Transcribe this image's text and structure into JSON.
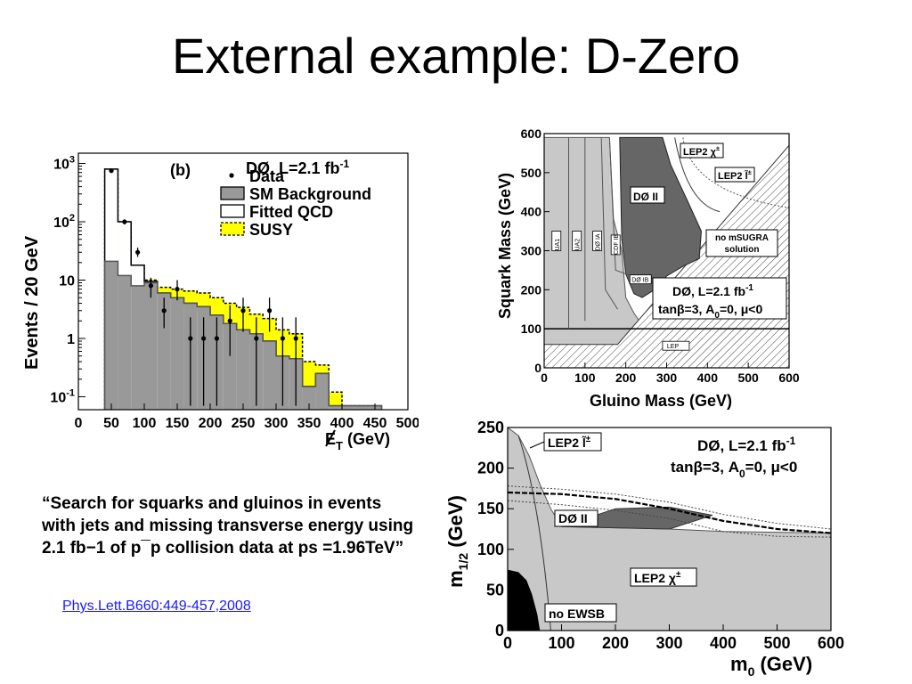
{
  "slide": {
    "title": "External example: D-Zero",
    "quote": "“Search for squarks and gluinos in events with jets and missing transverse energy using 2.1 fb−1 of p¯p collision data at ps =1.96TeV”",
    "citation": "Phys.Lett.B660:449-457,2008"
  },
  "chart_data": [
    {
      "type": "bar",
      "panel_label": "(b)",
      "experiment_label": "DØ, L=2.1 fb",
      "experiment_label_sup": "-1",
      "ylabel": "Events / 20 GeV",
      "xlabel_main": "E",
      "xlabel_sub": "T",
      "xlabel_unit": " (GeV)",
      "ylog": true,
      "ylim": [
        0.06,
        1500
      ],
      "xlim": [
        0,
        500
      ],
      "xticks": [
        0,
        50,
        100,
        150,
        200,
        250,
        300,
        350,
        400,
        450,
        500
      ],
      "yticks": [
        {
          "value": 1000,
          "base": "10",
          "exp": "3"
        },
        {
          "value": 100,
          "base": "10",
          "exp": "2"
        },
        {
          "value": 10,
          "base": "10",
          "exp": ""
        },
        {
          "value": 1,
          "base": "1",
          "exp": ""
        },
        {
          "value": 0.1,
          "base": "10",
          "exp": "-1"
        }
      ],
      "legend": [
        {
          "label": "Data",
          "kind": "marker"
        },
        {
          "label": "SM Background",
          "kind": "fill",
          "color": "#999999"
        },
        {
          "label": "Fitted QCD",
          "kind": "fill",
          "color": "#ffffff"
        },
        {
          "label": "SUSY",
          "kind": "fill",
          "color": "#ffff00"
        }
      ],
      "bin_edges": [
        40,
        60,
        80,
        100,
        120,
        140,
        160,
        180,
        200,
        220,
        240,
        260,
        280,
        300,
        320,
        340,
        360,
        380,
        400,
        420,
        440,
        460
      ],
      "sm_background": [
        21,
        12,
        8,
        9,
        6,
        5,
        4,
        3.5,
        2.5,
        1.8,
        1.4,
        1.2,
        0.9,
        0.5,
        0.45,
        0.15,
        0.25,
        0.07,
        0.07,
        0.07,
        0.07
      ],
      "fitted_qcd": [
        800,
        100,
        18,
        9.5,
        6,
        5,
        4,
        3.5,
        2.5,
        1.8,
        1.4,
        1.2,
        0.9,
        0.5,
        0.45,
        0.15,
        0.25,
        0.07,
        0.07,
        0.07,
        0.07
      ],
      "susy_total": [
        800,
        100,
        18,
        10,
        7.5,
        7,
        6.5,
        6,
        5,
        4,
        3.4,
        2.6,
        2.2,
        1.4,
        1.2,
        0.4,
        0.35,
        0.12,
        0.07,
        0.07,
        0.07
      ],
      "data": [
        {
          "x": 50,
          "y": 750,
          "lo": 700,
          "hi": 800
        },
        {
          "x": 70,
          "y": 100,
          "lo": 90,
          "hi": 110
        },
        {
          "x": 90,
          "y": 30,
          "lo": 25,
          "hi": 36
        },
        {
          "x": 110,
          "y": 8,
          "lo": 5,
          "hi": 11
        },
        {
          "x": 130,
          "y": 3,
          "lo": 1.5,
          "hi": 5
        },
        {
          "x": 150,
          "y": 7,
          "lo": 4.5,
          "hi": 10
        },
        {
          "x": 170,
          "y": 1,
          "lo": 0.07,
          "hi": 2.3
        },
        {
          "x": 190,
          "y": 1,
          "lo": 0.07,
          "hi": 2.3
        },
        {
          "x": 210,
          "y": 1,
          "lo": 0.07,
          "hi": 2.3
        },
        {
          "x": 230,
          "y": 2,
          "lo": 0.5,
          "hi": 3.7
        },
        {
          "x": 250,
          "y": 3,
          "lo": 1.3,
          "hi": 5
        },
        {
          "x": 270,
          "y": 1,
          "lo": 0.07,
          "hi": 2.3
        },
        {
          "x": 290,
          "y": 3,
          "lo": 1.3,
          "hi": 5
        },
        {
          "x": 310,
          "y": 1,
          "lo": 0.07,
          "hi": 2.3
        },
        {
          "x": 330,
          "y": 1,
          "lo": 0.07,
          "hi": 2.3
        }
      ]
    },
    {
      "type": "area",
      "ylabel": "Squark Mass (GeV)",
      "xlabel": "Gluino Mass (GeV)",
      "xlim": [
        0,
        600
      ],
      "ylim": [
        0,
        600
      ],
      "xticks": [
        0,
        100,
        200,
        300,
        400,
        500,
        600
      ],
      "yticks": [
        0,
        100,
        200,
        300,
        400,
        500,
        600
      ],
      "region_labels": {
        "d0_2": "DØ II",
        "lep2_chi": "LEP2 χ",
        "lep2_chi_sup": "±",
        "lep2_l": "LEP2 l̃",
        "lep2_l_sup": "±",
        "no_msugra_1": "no mSUGRA",
        "no_msugra_2": "solution",
        "ua1": "UA1",
        "ua2": "UA2",
        "d0_1a": "DØ IA",
        "cdf_ib": "CDF IB",
        "d0_ib": "DØ IB",
        "lep": "LEP"
      },
      "info_box": {
        "line1": "DØ, L=2.1 fb",
        "line1_sup": "-1",
        "line2": "tanβ=3, A",
        "line2_sub": "0",
        "line2_end": "=0, μ<0"
      },
      "regions": {
        "excluded_light": [
          [
            0,
            590
          ],
          [
            160,
            590
          ],
          [
            170,
            380
          ],
          [
            190,
            300
          ],
          [
            200,
            180
          ],
          [
            220,
            140
          ],
          [
            240,
            110
          ],
          [
            300,
            100
          ],
          [
            600,
            100
          ],
          [
            600,
            0
          ],
          [
            0,
            0
          ]
        ],
        "d0_2_dark": [
          [
            185,
            590
          ],
          [
            290,
            590
          ],
          [
            310,
            520
          ],
          [
            350,
            430
          ],
          [
            385,
            350
          ],
          [
            380,
            280
          ],
          [
            340,
            260
          ],
          [
            300,
            235
          ],
          [
            270,
            200
          ],
          [
            240,
            180
          ],
          [
            220,
            190
          ],
          [
            200,
            240
          ],
          [
            190,
            330
          ]
        ],
        "no_solution_hatch": [
          [
            600,
            570
          ],
          [
            180,
            60
          ],
          [
            0,
            60
          ],
          [
            0,
            0
          ],
          [
            600,
            0
          ]
        ]
      }
    },
    {
      "type": "area",
      "ylabel_main": "m",
      "ylabel_sub": "1/2",
      "ylabel_unit": " (GeV)",
      "xlabel_main": "m",
      "xlabel_sub": "0",
      "xlabel_unit": " (GeV)",
      "xlim": [
        0,
        600
      ],
      "ylim": [
        0,
        250
      ],
      "xticks": [
        0,
        100,
        200,
        300,
        400,
        500,
        600
      ],
      "yticks": [
        0,
        50,
        100,
        150,
        200,
        250
      ],
      "region_labels": {
        "lep2_l": "LEP2 l̃",
        "lep2_l_sup": "±",
        "d0_2": "DØ II",
        "lep2_chi": "LEP2 χ",
        "lep2_chi_sup": "±",
        "no_ewsb": "no EWSB"
      },
      "info_box": {
        "line1": "DØ, L=2.1 fb",
        "line1_sup": "-1",
        "line2": "tanβ=3, A",
        "line2_sub": "0",
        "line2_end": "=0, μ<0"
      },
      "regions": {
        "light_excluded": [
          [
            0,
            250
          ],
          [
            20,
            240
          ],
          [
            40,
            215
          ],
          [
            60,
            180
          ],
          [
            80,
            150
          ],
          [
            100,
            128
          ],
          [
            300,
            125
          ],
          [
            400,
            122
          ],
          [
            600,
            120
          ],
          [
            600,
            0
          ],
          [
            0,
            0
          ]
        ],
        "d0_2_dark": [
          [
            100,
            128
          ],
          [
            200,
            150
          ],
          [
            300,
            152
          ],
          [
            380,
            142
          ],
          [
            300,
            125
          ]
        ],
        "no_ewsb_black": [
          [
            0,
            75
          ],
          [
            20,
            72
          ],
          [
            35,
            62
          ],
          [
            45,
            45
          ],
          [
            55,
            20
          ],
          [
            60,
            0
          ],
          [
            0,
            0
          ]
        ],
        "contour_main": [
          [
            0,
            170
          ],
          [
            100,
            168
          ],
          [
            200,
            162
          ],
          [
            300,
            150
          ],
          [
            400,
            135
          ],
          [
            500,
            125
          ],
          [
            600,
            120
          ]
        ],
        "contour_upper": [
          [
            0,
            178
          ],
          [
            100,
            174
          ],
          [
            200,
            168
          ],
          [
            300,
            158
          ],
          [
            400,
            143
          ],
          [
            500,
            132
          ],
          [
            600,
            125
          ]
        ],
        "contour_lower": [
          [
            0,
            160
          ],
          [
            100,
            155
          ],
          [
            200,
            148
          ],
          [
            300,
            138
          ],
          [
            400,
            122
          ],
          [
            500,
            116
          ],
          [
            600,
            115
          ]
        ]
      }
    }
  ]
}
